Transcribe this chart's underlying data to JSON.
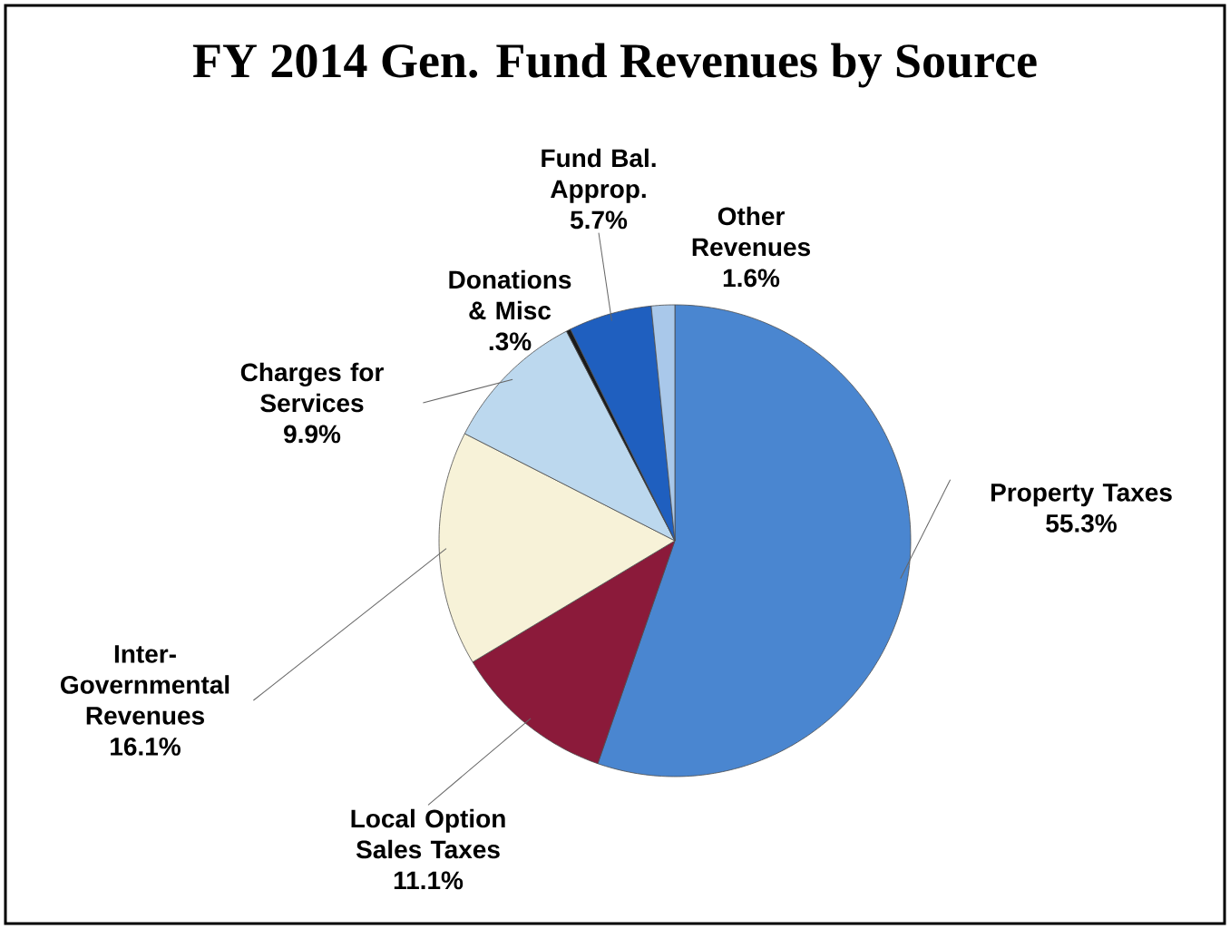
{
  "chart_data": {
    "type": "pie",
    "title": "FY 2014 Gen. Fund Revenues by Source",
    "categories": [
      "Property Taxes",
      "Local Option Sales Taxes",
      "Inter-Governmental Revenues",
      "Charges for Services",
      "Donations & Misc",
      "Fund Bal. Approp.",
      "Other Revenues"
    ],
    "values": [
      55.3,
      11.1,
      16.1,
      9.9,
      0.3,
      5.7,
      1.6
    ],
    "value_labels": [
      "55.3%",
      "11.1%",
      "16.1%",
      "9.9%",
      ".3%",
      "5.7%",
      "1.6%"
    ],
    "colors": [
      "#4a86d0",
      "#8b1a3a",
      "#f7f2d8",
      "#bcd8ee",
      "#1a1a1a",
      "#1f5fbf",
      "#a9c8ea"
    ]
  }
}
